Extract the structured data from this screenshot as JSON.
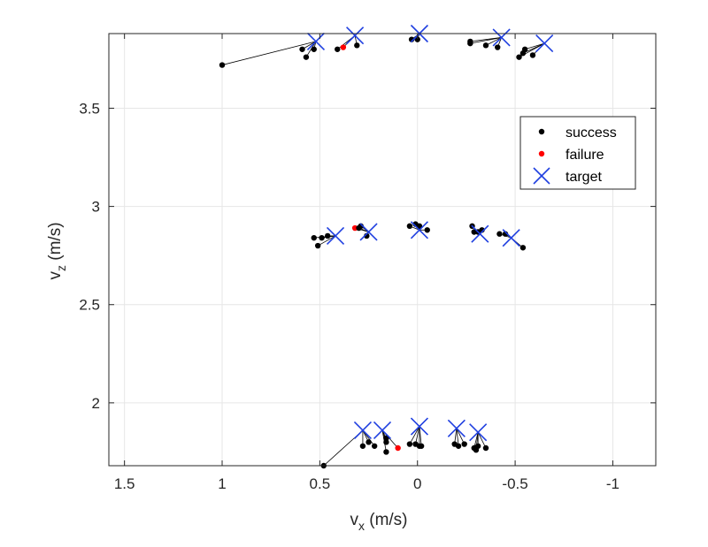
{
  "chart_data": {
    "type": "scatter",
    "title": "",
    "xlabel": "v_x (m/s)",
    "xlabel_main": "v",
    "xlabel_sub": "x",
    "xlabel_unit": " (m/s)",
    "ylabel": "v_z (m/s)",
    "ylabel_main": "v",
    "ylabel_sub": "z",
    "ylabel_unit": " (m/s)",
    "xlim": [
      -1.22,
      1.58
    ],
    "ylim": [
      1.68,
      3.88
    ],
    "x_reversed": true,
    "grid": true,
    "xticks": [
      1.5,
      1,
      0.5,
      0,
      -0.5,
      -1
    ],
    "xtick_labels": [
      "1.5",
      "1",
      "0.5",
      "0",
      "-0.5",
      "-1"
    ],
    "yticks": [
      2,
      2.5,
      3,
      3.5
    ],
    "ytick_labels": [
      "2",
      "2.5",
      "3",
      "3.5"
    ],
    "legend": {
      "placement": "top-right",
      "entries": [
        {
          "label": "success",
          "marker": "dot",
          "color": "#000000"
        },
        {
          "label": "failure",
          "marker": "dot",
          "color": "#ff0000"
        },
        {
          "label": "target",
          "marker": "x",
          "color": "#1f3fe0"
        }
      ]
    },
    "colors": {
      "success": "#000000",
      "failure": "#ff0000",
      "target": "#1f3fe0",
      "line": "#000000"
    },
    "groups": [
      {
        "target": [
          0.52,
          3.84
        ],
        "points": [
          [
            1.0,
            3.72,
            "success"
          ],
          [
            0.59,
            3.8,
            "success"
          ],
          [
            0.57,
            3.76,
            "success"
          ],
          [
            0.53,
            3.8,
            "success"
          ]
        ]
      },
      {
        "target": [
          0.32,
          3.87
        ],
        "points": [
          [
            0.41,
            3.8,
            "success"
          ],
          [
            0.38,
            3.81,
            "failure"
          ],
          [
            0.31,
            3.82,
            "success"
          ]
        ]
      },
      {
        "target": [
          -0.01,
          3.88
        ],
        "points": [
          [
            0.03,
            3.85,
            "success"
          ],
          [
            0.0,
            3.85,
            "success"
          ]
        ]
      },
      {
        "target": [
          -0.43,
          3.86
        ],
        "points": [
          [
            -0.27,
            3.84,
            "success"
          ],
          [
            -0.27,
            3.83,
            "success"
          ],
          [
            -0.35,
            3.82,
            "success"
          ],
          [
            -0.41,
            3.81,
            "success"
          ]
        ]
      },
      {
        "target": [
          -0.65,
          3.83
        ],
        "points": [
          [
            -0.52,
            3.76,
            "success"
          ],
          [
            -0.54,
            3.78,
            "success"
          ],
          [
            -0.55,
            3.8,
            "success"
          ],
          [
            -0.59,
            3.77,
            "success"
          ]
        ]
      },
      {
        "target": [
          0.42,
          2.85
        ],
        "points": [
          [
            0.53,
            2.84,
            "success"
          ],
          [
            0.51,
            2.8,
            "success"
          ],
          [
            0.49,
            2.84,
            "success"
          ],
          [
            0.46,
            2.85,
            "success"
          ]
        ]
      },
      {
        "target": [
          0.25,
          2.87
        ],
        "points": [
          [
            0.32,
            2.89,
            "failure"
          ],
          [
            0.3,
            2.89,
            "success"
          ],
          [
            0.29,
            2.9,
            "success"
          ],
          [
            0.26,
            2.85,
            "success"
          ]
        ]
      },
      {
        "target": [
          -0.01,
          2.88
        ],
        "points": [
          [
            0.04,
            2.9,
            "success"
          ],
          [
            0.01,
            2.91,
            "success"
          ],
          [
            -0.01,
            2.9,
            "success"
          ],
          [
            -0.05,
            2.88,
            "success"
          ]
        ]
      },
      {
        "target": [
          -0.32,
          2.86
        ],
        "points": [
          [
            -0.28,
            2.9,
            "success"
          ],
          [
            -0.29,
            2.87,
            "success"
          ],
          [
            -0.31,
            2.87,
            "success"
          ],
          [
            -0.33,
            2.88,
            "success"
          ]
        ]
      },
      {
        "target": [
          -0.48,
          2.84
        ],
        "points": [
          [
            -0.42,
            2.86,
            "success"
          ],
          [
            -0.45,
            2.86,
            "success"
          ],
          [
            -0.54,
            2.79,
            "success"
          ]
        ]
      },
      {
        "target": [
          0.28,
          1.86
        ],
        "points": [
          [
            0.48,
            1.68,
            "success"
          ],
          [
            0.28,
            1.78,
            "success"
          ],
          [
            0.25,
            1.8,
            "success"
          ],
          [
            0.22,
            1.78,
            "success"
          ]
        ]
      },
      {
        "target": [
          0.18,
          1.86
        ],
        "points": [
          [
            0.16,
            1.82,
            "success"
          ],
          [
            0.16,
            1.8,
            "success"
          ],
          [
            0.16,
            1.75,
            "success"
          ],
          [
            0.1,
            1.77,
            "failure"
          ]
        ]
      },
      {
        "target": [
          -0.01,
          1.88
        ],
        "points": [
          [
            0.04,
            1.79,
            "success"
          ],
          [
            0.01,
            1.79,
            "success"
          ],
          [
            -0.01,
            1.78,
            "success"
          ],
          [
            -0.02,
            1.78,
            "success"
          ]
        ]
      },
      {
        "target": [
          -0.2,
          1.87
        ],
        "points": [
          [
            -0.19,
            1.79,
            "success"
          ],
          [
            -0.21,
            1.78,
            "success"
          ],
          [
            -0.24,
            1.79,
            "success"
          ]
        ]
      },
      {
        "target": [
          -0.31,
          1.85
        ],
        "points": [
          [
            -0.29,
            1.77,
            "success"
          ],
          [
            -0.3,
            1.76,
            "success"
          ],
          [
            -0.31,
            1.78,
            "success"
          ],
          [
            -0.35,
            1.77,
            "success"
          ]
        ]
      }
    ]
  }
}
